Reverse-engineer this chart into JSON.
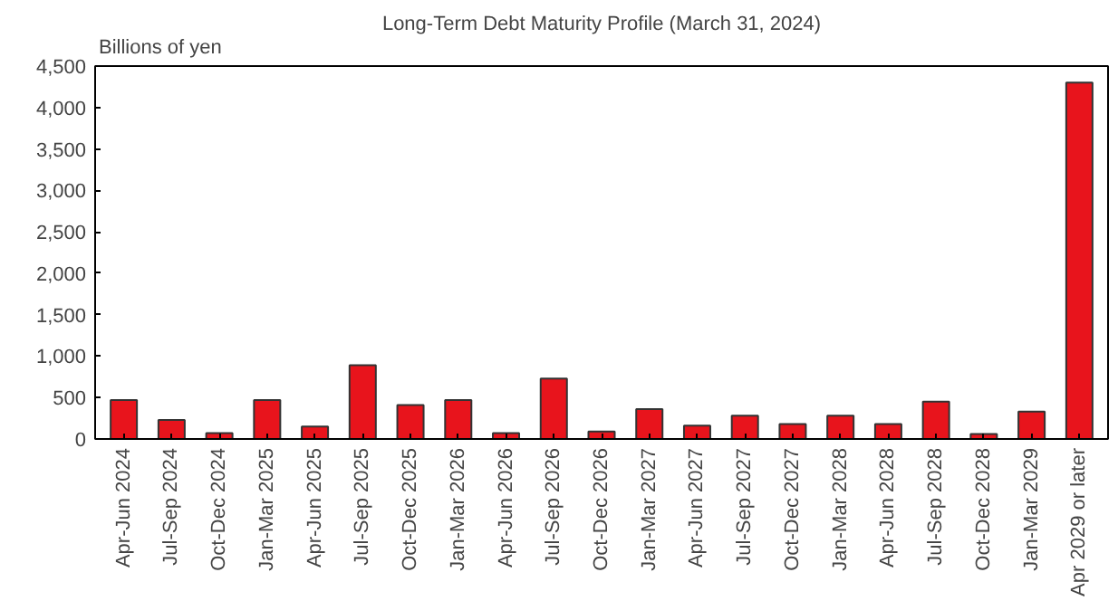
{
  "chart_data": {
    "type": "bar",
    "title": "Long-Term Debt Maturity Profile (March 31, 2024)",
    "ylabel": "Billions of yen",
    "categories": [
      "Apr-Jun 2024",
      "Jul-Sep 2024",
      "Oct-Dec 2024",
      "Jan-Mar 2025",
      "Apr-Jun 2025",
      "Jul-Sep 2025",
      "Oct-Dec 2025",
      "Jan-Mar 2026",
      "Apr-Jun 2026",
      "Jul-Sep 2026",
      "Oct-Dec 2026",
      "Jan-Mar 2027",
      "Apr-Jun 2027",
      "Jul-Sep 2027",
      "Oct-Dec 2027",
      "Jan-Mar 2028",
      "Apr-Jun 2028",
      "Jul-Sep 2028",
      "Oct-Dec 2028",
      "Jan-Mar 2029",
      "Apr 2029 or later"
    ],
    "values": [
      470,
      230,
      70,
      470,
      150,
      890,
      410,
      470,
      70,
      730,
      90,
      360,
      160,
      280,
      180,
      280,
      180,
      450,
      60,
      330,
      4300
    ],
    "color": "#e8141c",
    "ylim": [
      0,
      4500
    ],
    "yticks": [
      {
        "value": 0,
        "label": "0"
      },
      {
        "value": 500,
        "label": "500"
      },
      {
        "value": 1000,
        "label": "1,000"
      },
      {
        "value": 1500,
        "label": "1,500"
      },
      {
        "value": 2000,
        "label": "2,000"
      },
      {
        "value": 2500,
        "label": "2,500"
      },
      {
        "value": 3000,
        "label": "3,000"
      },
      {
        "value": 3500,
        "label": "3,500"
      },
      {
        "value": 4000,
        "label": "4,000"
      },
      {
        "value": 4500,
        "label": "4,500"
      }
    ],
    "grid": false
  }
}
